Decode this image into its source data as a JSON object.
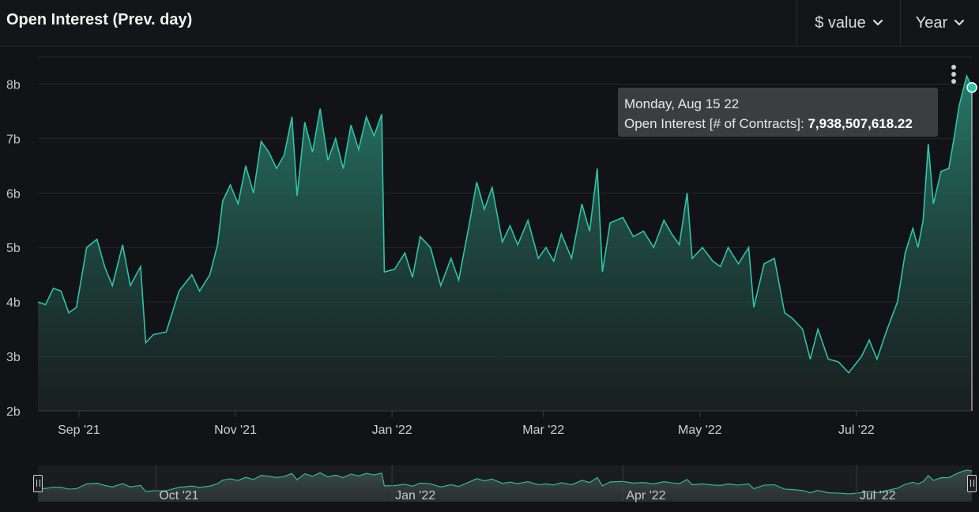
{
  "header": {
    "title": "Open Interest (Prev. day)",
    "dropdown_metric": "$ value",
    "dropdown_range": "Year"
  },
  "tooltip": {
    "date": "Monday, Aug 15 22",
    "label": "Open Interest [# of Contracts]:",
    "value": "7,938,507,618.22"
  },
  "colors": {
    "background": "#121316",
    "line": "#2ec4a8",
    "fill_top": "#2a8a76",
    "grid": "#26282c",
    "text": "#c8c8c8"
  },
  "icons": [
    "chevron-down-icon",
    "more-vertical-icon",
    "range-handle-icon"
  ],
  "chart_data": {
    "type": "area",
    "title": "Open Interest (Prev. day)",
    "series": [
      {
        "name": "Open Interest [# of Contracts]"
      }
    ],
    "ylim": [
      2,
      8.5
    ],
    "y_unit": "b",
    "y_ticks": [
      2,
      3,
      4,
      5,
      6,
      7,
      8
    ],
    "y_tick_labels": [
      "2b",
      "3b",
      "4b",
      "5b",
      "6b",
      "7b",
      "8b"
    ],
    "x_range": [
      "2021-08-16",
      "2022-08-15"
    ],
    "x_ticks": [
      {
        "date": "2021-09-01",
        "label": "Sep '21"
      },
      {
        "date": "2021-11-01",
        "label": "Nov '21"
      },
      {
        "date": "2022-01-01",
        "label": "Jan '22"
      },
      {
        "date": "2022-03-01",
        "label": "Mar '22"
      },
      {
        "date": "2022-05-01",
        "label": "May '22"
      },
      {
        "date": "2022-07-01",
        "label": "Jul '22"
      }
    ],
    "navigator_ticks": [
      {
        "date": "2021-10-01",
        "label": "Oct '21"
      },
      {
        "date": "2022-01-01",
        "label": "Jan '22"
      },
      {
        "date": "2022-04-01",
        "label": "Apr '22"
      },
      {
        "date": "2022-07-01",
        "label": "Jul '22"
      }
    ],
    "points": [
      [
        "2021-08-16",
        4.0
      ],
      [
        "2021-08-19",
        3.95
      ],
      [
        "2021-08-22",
        4.25
      ],
      [
        "2021-08-25",
        4.2
      ],
      [
        "2021-08-28",
        3.8
      ],
      [
        "2021-08-31",
        3.9
      ],
      [
        "2021-09-04",
        5.0
      ],
      [
        "2021-09-08",
        5.15
      ],
      [
        "2021-09-11",
        4.65
      ],
      [
        "2021-09-14",
        4.3
      ],
      [
        "2021-09-18",
        5.05
      ],
      [
        "2021-09-21",
        4.3
      ],
      [
        "2021-09-25",
        4.65
      ],
      [
        "2021-09-27",
        3.25
      ],
      [
        "2021-09-30",
        3.4
      ],
      [
        "2021-10-05",
        3.45
      ],
      [
        "2021-10-10",
        4.2
      ],
      [
        "2021-10-15",
        4.5
      ],
      [
        "2021-10-18",
        4.2
      ],
      [
        "2021-10-22",
        4.5
      ],
      [
        "2021-10-25",
        5.05
      ],
      [
        "2021-10-27",
        5.85
      ],
      [
        "2021-10-30",
        6.15
      ],
      [
        "2021-11-02",
        5.8
      ],
      [
        "2021-11-05",
        6.5
      ],
      [
        "2021-11-08",
        6.0
      ],
      [
        "2021-11-11",
        6.95
      ],
      [
        "2021-11-14",
        6.75
      ],
      [
        "2021-11-17",
        6.45
      ],
      [
        "2021-11-20",
        6.7
      ],
      [
        "2021-11-23",
        7.4
      ],
      [
        "2021-11-25",
        5.95
      ],
      [
        "2021-11-28",
        7.3
      ],
      [
        "2021-12-01",
        6.75
      ],
      [
        "2021-12-04",
        7.55
      ],
      [
        "2021-12-07",
        6.6
      ],
      [
        "2021-12-10",
        7.0
      ],
      [
        "2021-12-13",
        6.45
      ],
      [
        "2021-12-16",
        7.25
      ],
      [
        "2021-12-19",
        6.8
      ],
      [
        "2021-12-22",
        7.4
      ],
      [
        "2021-12-25",
        7.05
      ],
      [
        "2021-12-28",
        7.45
      ],
      [
        "2021-12-29",
        4.55
      ],
      [
        "2022-01-02",
        4.6
      ],
      [
        "2022-01-06",
        4.9
      ],
      [
        "2022-01-09",
        4.45
      ],
      [
        "2022-01-12",
        5.2
      ],
      [
        "2022-01-16",
        5.0
      ],
      [
        "2022-01-20",
        4.3
      ],
      [
        "2022-01-24",
        4.8
      ],
      [
        "2022-01-27",
        4.4
      ],
      [
        "2022-01-31",
        5.4
      ],
      [
        "2022-02-03",
        6.2
      ],
      [
        "2022-02-06",
        5.7
      ],
      [
        "2022-02-09",
        6.1
      ],
      [
        "2022-02-13",
        5.1
      ],
      [
        "2022-02-16",
        5.4
      ],
      [
        "2022-02-19",
        5.05
      ],
      [
        "2022-02-23",
        5.5
      ],
      [
        "2022-02-27",
        4.8
      ],
      [
        "2022-03-02",
        5.0
      ],
      [
        "2022-03-05",
        4.75
      ],
      [
        "2022-03-08",
        5.25
      ],
      [
        "2022-03-12",
        4.8
      ],
      [
        "2022-03-16",
        5.8
      ],
      [
        "2022-03-19",
        5.3
      ],
      [
        "2022-03-22",
        6.45
      ],
      [
        "2022-03-24",
        4.55
      ],
      [
        "2022-03-27",
        5.45
      ],
      [
        "2022-04-01",
        5.55
      ],
      [
        "2022-04-05",
        5.2
      ],
      [
        "2022-04-09",
        5.3
      ],
      [
        "2022-04-13",
        5.0
      ],
      [
        "2022-04-17",
        5.5
      ],
      [
        "2022-04-20",
        5.25
      ],
      [
        "2022-04-23",
        5.05
      ],
      [
        "2022-04-26",
        6.0
      ],
      [
        "2022-04-28",
        4.8
      ],
      [
        "2022-05-02",
        5.0
      ],
      [
        "2022-05-06",
        4.75
      ],
      [
        "2022-05-09",
        4.65
      ],
      [
        "2022-05-12",
        5.0
      ],
      [
        "2022-05-16",
        4.7
      ],
      [
        "2022-05-20",
        5.0
      ],
      [
        "2022-05-22",
        3.9
      ],
      [
        "2022-05-26",
        4.7
      ],
      [
        "2022-05-30",
        4.8
      ],
      [
        "2022-06-03",
        3.8
      ],
      [
        "2022-06-06",
        3.7
      ],
      [
        "2022-06-10",
        3.5
      ],
      [
        "2022-06-13",
        2.95
      ],
      [
        "2022-06-16",
        3.5
      ],
      [
        "2022-06-20",
        2.95
      ],
      [
        "2022-06-24",
        2.9
      ],
      [
        "2022-06-28",
        2.7
      ],
      [
        "2022-07-03",
        3.0
      ],
      [
        "2022-07-06",
        3.3
      ],
      [
        "2022-07-09",
        2.95
      ],
      [
        "2022-07-13",
        3.5
      ],
      [
        "2022-07-17",
        4.0
      ],
      [
        "2022-07-20",
        4.9
      ],
      [
        "2022-07-23",
        5.35
      ],
      [
        "2022-07-25",
        5.0
      ],
      [
        "2022-07-27",
        5.5
      ],
      [
        "2022-07-29",
        6.9
      ],
      [
        "2022-07-31",
        5.8
      ],
      [
        "2022-08-03",
        6.4
      ],
      [
        "2022-08-06",
        6.45
      ],
      [
        "2022-08-08",
        7.0
      ],
      [
        "2022-08-10",
        7.6
      ],
      [
        "2022-08-13",
        8.15
      ],
      [
        "2022-08-15",
        7.94
      ]
    ],
    "highlight": {
      "date": "2022-08-15",
      "value": 7.9385
    },
    "grid": true,
    "legend": "none"
  }
}
